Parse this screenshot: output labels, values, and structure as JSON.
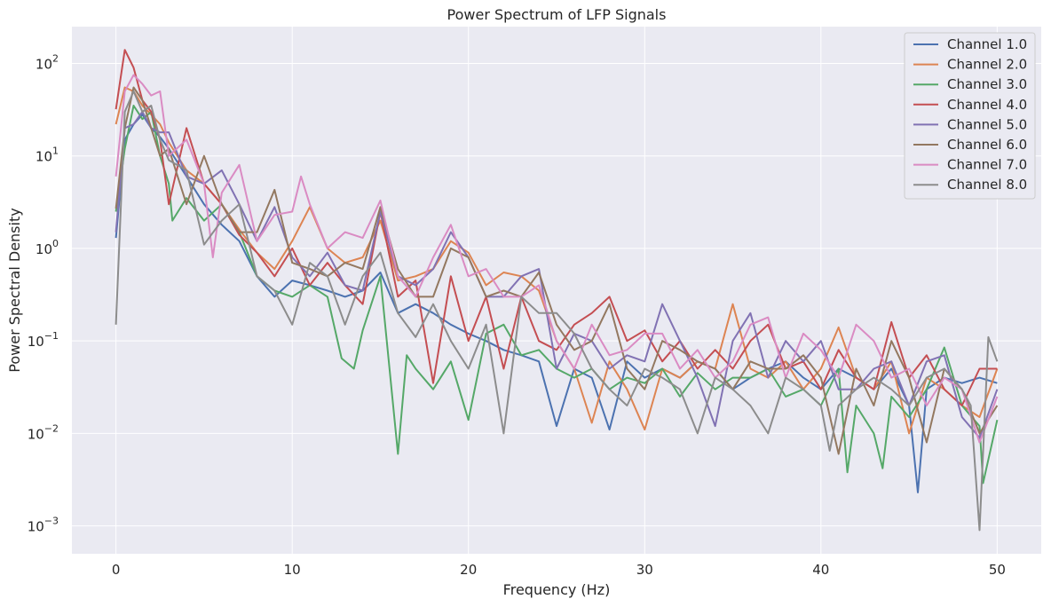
{
  "chart_data": {
    "type": "line",
    "title": "Power Spectrum of LFP Signals",
    "xlabel": "Frequency (Hz)",
    "ylabel": "Power Spectral Density",
    "xlim": [
      -2.5,
      52.5
    ],
    "ylim": [
      0.0005,
      250
    ],
    "yscale": "log",
    "xticks": [
      0,
      10,
      20,
      30,
      40,
      50
    ],
    "yticks": [
      0.001,
      0.01,
      0.1,
      1,
      10,
      100
    ],
    "ytick_labels": [
      {
        "base": "10",
        "exp": "−3"
      },
      {
        "base": "10",
        "exp": "−2"
      },
      {
        "base": "10",
        "exp": "−1"
      },
      {
        "base": "10",
        "exp": "0"
      },
      {
        "base": "10",
        "exp": "1"
      },
      {
        "base": "10",
        "exp": "2"
      }
    ],
    "grid": true,
    "legend_position": "top-right",
    "background": "#eaeaf2",
    "series": [
      {
        "name": "Channel 1.0",
        "color": "#4c72b0",
        "x": [
          0,
          0.5,
          1,
          1.5,
          2,
          2.5,
          3,
          4,
          5,
          6,
          7,
          8,
          9,
          10,
          11,
          12,
          13,
          14,
          15,
          16,
          17,
          18,
          19,
          20,
          21,
          22,
          23,
          24,
          25,
          26,
          27,
          28,
          29,
          30,
          31,
          32,
          33,
          34,
          35,
          36,
          37,
          38,
          39,
          40,
          41,
          42,
          43,
          44,
          45,
          45.5,
          46,
          47,
          48,
          49,
          50
        ],
        "y": [
          1.3,
          15,
          22,
          28,
          20,
          16,
          12,
          6,
          3,
          1.8,
          1.2,
          0.5,
          0.3,
          0.45,
          0.4,
          0.35,
          0.3,
          0.35,
          0.55,
          0.2,
          0.25,
          0.2,
          0.15,
          0.12,
          0.1,
          0.08,
          0.07,
          0.06,
          0.012,
          0.05,
          0.04,
          0.011,
          0.06,
          0.04,
          0.05,
          0.04,
          0.06,
          0.05,
          0.03,
          0.04,
          0.05,
          0.06,
          0.04,
          0.03,
          0.05,
          0.04,
          0.03,
          0.05,
          0.02,
          0.0023,
          0.03,
          0.04,
          0.035,
          0.04,
          0.035
        ]
      },
      {
        "name": "Channel 2.0",
        "color": "#dd8452",
        "x": [
          0,
          0.5,
          1,
          1.5,
          2,
          2.5,
          3,
          4,
          5,
          6,
          7,
          8,
          9,
          10,
          11,
          12,
          13,
          14,
          15,
          16,
          17,
          18,
          19,
          20,
          21,
          22,
          23,
          24,
          25,
          26,
          27,
          28,
          29,
          30,
          31,
          32,
          33,
          34,
          35,
          36,
          37,
          38,
          39,
          40,
          41,
          42,
          43,
          44,
          45,
          46,
          47,
          48,
          49,
          50
        ],
        "y": [
          22,
          55,
          50,
          35,
          28,
          22,
          14,
          7,
          5,
          3,
          1.6,
          0.9,
          0.6,
          1.2,
          2.8,
          1.0,
          0.7,
          0.8,
          2.0,
          0.45,
          0.5,
          0.6,
          1.2,
          0.9,
          0.4,
          0.55,
          0.5,
          0.35,
          0.1,
          0.05,
          0.013,
          0.06,
          0.03,
          0.011,
          0.05,
          0.04,
          0.06,
          0.05,
          0.25,
          0.05,
          0.04,
          0.06,
          0.03,
          0.05,
          0.14,
          0.04,
          0.03,
          0.06,
          0.01,
          0.04,
          0.03,
          0.02,
          0.015,
          0.05
        ]
      },
      {
        "name": "Channel 3.0",
        "color": "#55a868",
        "x": [
          0,
          0.5,
          1,
          1.5,
          2,
          2.5,
          3,
          3.2,
          4,
          5,
          6,
          7,
          8,
          9,
          10,
          11,
          12,
          12.8,
          13.5,
          14,
          15,
          16,
          16.5,
          17,
          18,
          19,
          20,
          21,
          22,
          23,
          24,
          25,
          26,
          27,
          28,
          29,
          30,
          31,
          32,
          33,
          34,
          35,
          36,
          37,
          38,
          39,
          40,
          41,
          41.5,
          42,
          43,
          43.5,
          44,
          45,
          46,
          47,
          48,
          49,
          49.2,
          50
        ],
        "y": [
          2.5,
          12,
          35,
          25,
          30,
          10,
          5,
          2,
          3.5,
          2,
          3,
          1.5,
          0.5,
          0.35,
          0.3,
          0.4,
          0.3,
          0.065,
          0.05,
          0.13,
          0.5,
          0.006,
          0.07,
          0.05,
          0.03,
          0.06,
          0.014,
          0.12,
          0.15,
          0.07,
          0.08,
          0.05,
          0.04,
          0.05,
          0.03,
          0.04,
          0.035,
          0.05,
          0.025,
          0.045,
          0.03,
          0.04,
          0.04,
          0.05,
          0.025,
          0.03,
          0.02,
          0.05,
          0.0038,
          0.02,
          0.01,
          0.0042,
          0.025,
          0.015,
          0.03,
          0.085,
          0.02,
          0.012,
          0.0029,
          0.014
        ]
      },
      {
        "name": "Channel 4.0",
        "color": "#c44e52",
        "x": [
          0,
          0.5,
          1,
          1.5,
          2,
          2.5,
          3,
          4,
          5,
          6,
          7,
          8,
          9,
          10,
          11,
          12,
          13,
          14,
          15,
          16,
          17,
          18,
          19,
          20,
          21,
          22,
          23,
          24,
          25,
          26,
          27,
          28,
          29,
          30,
          31,
          32,
          33,
          34,
          35,
          36,
          37,
          38,
          39,
          40,
          41,
          42,
          43,
          44,
          45,
          46,
          47,
          48,
          49,
          50
        ],
        "y": [
          32,
          140,
          90,
          40,
          30,
          15,
          3,
          20,
          5,
          3,
          1.4,
          0.9,
          0.5,
          1.0,
          0.4,
          0.7,
          0.4,
          0.25,
          2.5,
          0.3,
          0.45,
          0.035,
          0.5,
          0.1,
          0.3,
          0.05,
          0.3,
          0.1,
          0.08,
          0.15,
          0.2,
          0.3,
          0.1,
          0.13,
          0.06,
          0.1,
          0.05,
          0.08,
          0.05,
          0.1,
          0.15,
          0.05,
          0.06,
          0.03,
          0.08,
          0.04,
          0.03,
          0.16,
          0.04,
          0.07,
          0.03,
          0.02,
          0.05,
          0.05
        ]
      },
      {
        "name": "Channel 5.0",
        "color": "#8172b3",
        "x": [
          0,
          0.5,
          1,
          1.5,
          2,
          2.5,
          3,
          4,
          5,
          6,
          7,
          8,
          9,
          10,
          11,
          12,
          13,
          14,
          15,
          16,
          17,
          18,
          19,
          20,
          21,
          22,
          23,
          24,
          25,
          26,
          27,
          28,
          29,
          30,
          31,
          32,
          33,
          34,
          35,
          36,
          37,
          38,
          39,
          40,
          41,
          42,
          43,
          44,
          45,
          46,
          47,
          48,
          49,
          50
        ],
        "y": [
          1.5,
          20,
          22,
          30,
          20,
          18,
          18,
          6,
          5,
          7,
          3,
          1.2,
          2.8,
          0.8,
          0.5,
          0.9,
          0.4,
          0.35,
          2.5,
          0.5,
          0.4,
          0.6,
          1.5,
          0.8,
          0.3,
          0.3,
          0.5,
          0.6,
          0.05,
          0.12,
          0.1,
          0.05,
          0.07,
          0.06,
          0.25,
          0.1,
          0.04,
          0.012,
          0.1,
          0.2,
          0.04,
          0.1,
          0.06,
          0.1,
          0.03,
          0.03,
          0.05,
          0.06,
          0.02,
          0.06,
          0.07,
          0.015,
          0.009,
          0.03
        ]
      },
      {
        "name": "Channel 6.0",
        "color": "#937860",
        "x": [
          0,
          0.5,
          1,
          1.5,
          2,
          2.5,
          3,
          4,
          5,
          6,
          7,
          8,
          9,
          10,
          11,
          12,
          13,
          14,
          15,
          16,
          17,
          18,
          19,
          20,
          21,
          22,
          23,
          24,
          25,
          26,
          27,
          28,
          29,
          30,
          31,
          32,
          33,
          34,
          35,
          36,
          37,
          38,
          39,
          40,
          41,
          42,
          43,
          44,
          45,
          46,
          47,
          48,
          49,
          50
        ],
        "y": [
          2.7,
          20,
          55,
          40,
          20,
          10,
          12,
          3,
          10,
          3,
          1.5,
          1.5,
          4.3,
          0.7,
          0.6,
          0.5,
          0.7,
          0.6,
          2.8,
          0.6,
          0.3,
          0.3,
          1.0,
          0.8,
          0.3,
          0.35,
          0.3,
          0.55,
          0.15,
          0.08,
          0.1,
          0.25,
          0.05,
          0.03,
          0.1,
          0.08,
          0.06,
          0.05,
          0.03,
          0.06,
          0.05,
          0.05,
          0.07,
          0.04,
          0.006,
          0.05,
          0.02,
          0.1,
          0.04,
          0.008,
          0.05,
          0.03,
          0.01,
          0.02
        ]
      },
      {
        "name": "Channel 7.0",
        "color": "#da8bc3",
        "x": [
          0,
          0.5,
          1,
          1.5,
          2,
          2.5,
          3,
          4,
          5,
          5.5,
          6,
          7,
          8,
          9,
          10,
          10.5,
          11,
          12,
          13,
          14,
          15,
          16,
          17,
          18,
          19,
          20,
          21,
          22,
          23,
          24,
          25,
          26,
          27,
          28,
          29,
          30,
          31,
          32,
          33,
          34,
          35,
          36,
          37,
          38,
          39,
          40,
          41,
          42,
          43,
          44,
          45,
          46,
          47,
          48,
          49,
          50
        ],
        "y": [
          6,
          50,
          75,
          60,
          45,
          50,
          10,
          15,
          5,
          0.8,
          4,
          8,
          1.2,
          2.3,
          2.5,
          6,
          3,
          1.0,
          1.5,
          1.3,
          3.3,
          0.5,
          0.3,
          0.8,
          1.8,
          0.5,
          0.6,
          0.3,
          0.3,
          0.4,
          0.1,
          0.05,
          0.15,
          0.07,
          0.08,
          0.12,
          0.12,
          0.05,
          0.08,
          0.04,
          0.06,
          0.15,
          0.18,
          0.04,
          0.12,
          0.08,
          0.04,
          0.15,
          0.1,
          0.04,
          0.05,
          0.02,
          0.04,
          0.03,
          0.008,
          0.025
        ]
      },
      {
        "name": "Channel 8.0",
        "color": "#8c8c8c",
        "x": [
          0,
          0.5,
          1,
          1.5,
          2,
          2.5,
          3,
          4,
          5,
          6,
          7,
          8,
          9,
          10,
          11,
          12,
          13,
          14,
          15,
          16,
          17,
          18,
          19,
          20,
          21,
          22,
          23,
          24,
          25,
          26,
          27,
          28,
          29,
          30,
          31,
          32,
          33,
          34,
          35,
          36,
          37,
          38,
          39,
          40,
          40.5,
          41,
          42,
          43,
          44,
          45,
          46,
          47,
          48,
          48.5,
          49,
          49.5,
          50
        ],
        "y": [
          0.15,
          30,
          50,
          30,
          35,
          15,
          9,
          7,
          1.1,
          2,
          3,
          0.5,
          0.35,
          0.15,
          0.7,
          0.5,
          0.15,
          0.5,
          0.9,
          0.2,
          0.11,
          0.25,
          0.1,
          0.05,
          0.15,
          0.01,
          0.3,
          0.2,
          0.2,
          0.12,
          0.05,
          0.03,
          0.02,
          0.05,
          0.04,
          0.03,
          0.01,
          0.04,
          0.03,
          0.02,
          0.01,
          0.04,
          0.03,
          0.02,
          0.0065,
          0.02,
          0.03,
          0.04,
          0.03,
          0.02,
          0.04,
          0.05,
          0.03,
          0.02,
          0.0009,
          0.11,
          0.06
        ]
      }
    ]
  }
}
